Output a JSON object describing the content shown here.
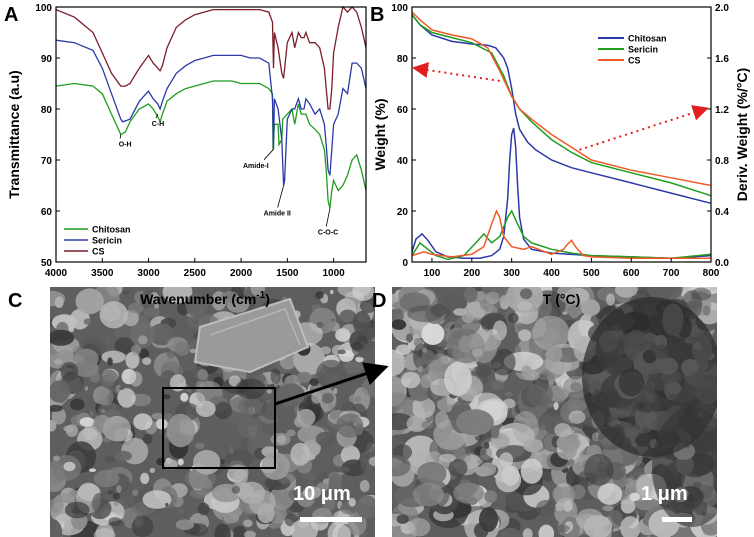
{
  "panels": {
    "A": {
      "letter": "A",
      "chart_data": {
        "type": "line",
        "xlabel": "Wavenumber (cm",
        "xlabel_sup": "-1",
        "xlabel_end": ")",
        "ylabel": "Transmittance (a.u)",
        "xlim": [
          4000,
          650
        ],
        "ylim": [
          50,
          100
        ],
        "xticks": [
          4000,
          3500,
          3000,
          2500,
          2000,
          1500,
          1000
        ],
        "yticks": [
          50,
          60,
          70,
          80,
          90,
          100
        ],
        "legend_position": "bottom-left",
        "series": [
          {
            "name": "Chitosan",
            "color": "#1f9e1f",
            "x": [
              4000,
              3800,
              3600,
              3500,
              3400,
              3300,
              3250,
              3200,
              3100,
              3000,
              2950,
              2900,
              2875,
              2850,
              2800,
              2700,
              2600,
              2500,
              2400,
              2300,
              2200,
              2100,
              2000,
              1900,
              1800,
              1700,
              1660,
              1655,
              1640,
              1600,
              1590,
              1560,
              1550,
              1500,
              1450,
              1420,
              1380,
              1350,
              1320,
              1300,
              1260,
              1200,
              1150,
              1100,
              1080,
              1060,
              1040,
              1020,
              1000,
              950,
              900,
              850,
              800,
              750,
              700,
              650
            ],
            "y": [
              84.5,
              85,
              84.5,
              83,
              79,
              75,
              75.5,
              77.5,
              80,
              81,
              80,
              78.5,
              77.5,
              79,
              81.5,
              83,
              84,
              84.5,
              85,
              85.5,
              85.5,
              85.5,
              85,
              85,
              85,
              84,
              83,
              72,
              77,
              77,
              73,
              74,
              78,
              79,
              80,
              77,
              81,
              79,
              79,
              79,
              77,
              76,
              75,
              72,
              68,
              62,
              60.5,
              64,
              66,
              64,
              65,
              67,
              70,
              71,
              68,
              64
            ]
          },
          {
            "name": "Sericin",
            "color": "#2c3aa8",
            "x": [
              4000,
              3800,
              3600,
              3500,
              3400,
              3300,
              3280,
              3200,
              3100,
              3000,
              2950,
              2900,
              2875,
              2850,
              2800,
              2700,
              2600,
              2500,
              2400,
              2300,
              2200,
              2100,
              2000,
              1900,
              1800,
              1700,
              1660,
              1650,
              1640,
              1600,
              1560,
              1540,
              1530,
              1500,
              1450,
              1420,
              1380,
              1350,
              1320,
              1300,
              1260,
              1200,
              1150,
              1100,
              1080,
              1060,
              1040,
              1020,
              1000,
              950,
              900,
              850,
              800,
              750,
              700,
              650
            ],
            "y": [
              93.5,
              93,
              91.5,
              88,
              83,
              78,
              77.5,
              78,
              81.5,
              83.5,
              82,
              81,
              80,
              81.5,
              84,
              87,
              88.5,
              89.5,
              90,
              90.5,
              90.5,
              90.5,
              90.5,
              90,
              90,
              89,
              82,
              72,
              82,
              80,
              74,
              65,
              66,
              78,
              80,
              80,
              82,
              80,
              80,
              82,
              81,
              79,
              80,
              77,
              73,
              68,
              67,
              72,
              77,
              79,
              84,
              83,
              89,
              89,
              88,
              84
            ]
          },
          {
            "name": "CS",
            "color": "#7a1f2a",
            "x": [
              4000,
              3800,
              3600,
              3500,
              3400,
              3300,
              3250,
              3200,
              3100,
              3000,
              2950,
              2900,
              2875,
              2850,
              2800,
              2700,
              2600,
              2500,
              2400,
              2300,
              2200,
              2100,
              2000,
              1900,
              1800,
              1700,
              1660,
              1650,
              1640,
              1600,
              1560,
              1540,
              1500,
              1450,
              1420,
              1380,
              1350,
              1320,
              1300,
              1260,
              1200,
              1150,
              1100,
              1080,
              1060,
              1040,
              1020,
              1000,
              950,
              900,
              850,
              800,
              750,
              700,
              650
            ],
            "y": [
              99.5,
              98,
              95,
              91,
              87,
              84.5,
              84.5,
              85,
              88,
              90.5,
              89,
              88,
              87.5,
              88.5,
              92,
              96,
              97.5,
              98.5,
              99,
              99.5,
              99.5,
              99.5,
              99.5,
              99.5,
              99.5,
              99,
              97,
              88,
              95,
              92,
              87,
              86,
              93,
              95,
              92,
              95,
              94,
              94,
              95,
              93,
              93,
              92,
              88,
              84,
              80,
              80,
              84,
              91,
              96,
              100,
              99,
              100,
              99,
              96,
              92
            ]
          }
        ],
        "annotations": [
          {
            "text": "O-H",
            "x": 3300,
            "y": 75
          },
          {
            "text": "C-H",
            "x": 2900,
            "y": 79
          },
          {
            "text": "Amide-I",
            "x": 1655,
            "y": 72
          },
          {
            "text": "Amide II",
            "x": 1540,
            "y": 65
          },
          {
            "text": "C-O-C",
            "x": 1040,
            "y": 60.5
          }
        ]
      }
    },
    "B": {
      "letter": "B",
      "chart_data": {
        "type": "line",
        "xlabel": "T (°C)",
        "ylabel": "Weight (%)",
        "y2label": "Deriv. Weight (%/°C)",
        "xlim": [
          50,
          800
        ],
        "ylim": [
          0,
          100
        ],
        "y2lim": [
          0,
          2.0
        ],
        "xticks": [
          100,
          200,
          300,
          400,
          500,
          600,
          700,
          800
        ],
        "yticks": [
          0,
          20,
          40,
          60,
          80,
          100
        ],
        "y2ticks": [
          0.0,
          0.4,
          0.8,
          1.2,
          1.6,
          2.0
        ],
        "legend_position": "top-right",
        "series": [
          {
            "name": "Chitosan",
            "color": "#2c3aa8",
            "tga_x": [
              50,
              70,
              100,
              150,
              200,
              240,
              260,
              280,
              290,
              300,
              310,
              320,
              340,
              360,
              400,
              450,
              500,
              600,
              700,
              800
            ],
            "tga_y": [
              97,
              93,
              89,
              86.5,
              85.5,
              85,
              84,
              80,
              76,
              68,
              58,
              52,
              47,
              44,
              40,
              37,
              35,
              31,
              27,
              23
            ],
            "dtg_x": [
              50,
              60,
              75,
              90,
              110,
              140,
              180,
              220,
              250,
              270,
              280,
              290,
              295,
              300,
              305,
              310,
              315,
              320,
              330,
              350,
              400,
              500,
              600,
              700,
              800
            ],
            "dtg_y": [
              0.08,
              0.18,
              0.22,
              0.17,
              0.08,
              0.04,
              0.03,
              0.03,
              0.05,
              0.1,
              0.2,
              0.5,
              0.8,
              1.0,
              1.05,
              0.9,
              0.6,
              0.35,
              0.18,
              0.1,
              0.07,
              0.05,
              0.04,
              0.03,
              0.05
            ]
          },
          {
            "name": "Sericin",
            "color": "#1f9e1f",
            "tga_x": [
              50,
              70,
              100,
              150,
              200,
              250,
              280,
              300,
              320,
              350,
              400,
              450,
              500,
              600,
              700,
              800
            ],
            "tga_y": [
              97,
              93,
              90,
              88,
              86,
              82,
              73,
              65,
              60,
              55,
              48,
              43,
              39,
              35,
              31,
              26
            ],
            "dtg_x": [
              50,
              70,
              90,
              110,
              140,
              180,
              210,
              230,
              250,
              270,
              290,
              300,
              310,
              330,
              350,
              400,
              450,
              500,
              600,
              700,
              800
            ],
            "dtg_y": [
              0.05,
              0.15,
              0.1,
              0.05,
              0.02,
              0.05,
              0.15,
              0.22,
              0.15,
              0.2,
              0.35,
              0.4,
              0.33,
              0.2,
              0.15,
              0.1,
              0.07,
              0.05,
              0.04,
              0.03,
              0.06
            ]
          },
          {
            "name": "CS",
            "color": "#f05a28",
            "tga_x": [
              50,
              70,
              100,
              150,
              200,
              240,
              270,
              300,
              320,
              350,
              400,
              450,
              500,
              600,
              700,
              800
            ],
            "tga_y": [
              98,
              95,
              91,
              89,
              87.5,
              84,
              75,
              65,
              60,
              56,
              50,
              45,
              40,
              36,
              33,
              30
            ],
            "dtg_x": [
              50,
              80,
              100,
              150,
              200,
              230,
              250,
              262,
              270,
              280,
              300,
              330,
              350,
              400,
              430,
              440,
              450,
              460,
              480,
              500,
              600,
              700,
              800
            ],
            "dtg_y": [
              0.05,
              0.08,
              0.06,
              0.04,
              0.06,
              0.12,
              0.3,
              0.4,
              0.35,
              0.2,
              0.12,
              0.1,
              0.12,
              0.06,
              0.1,
              0.14,
              0.17,
              0.12,
              0.05,
              0.04,
              0.03,
              0.03,
              0.03
            ]
          }
        ]
      }
    },
    "C": {
      "letter": "C",
      "scale_label": "10 μm"
    },
    "D": {
      "letter": "D",
      "scale_label": "1 μm"
    }
  }
}
